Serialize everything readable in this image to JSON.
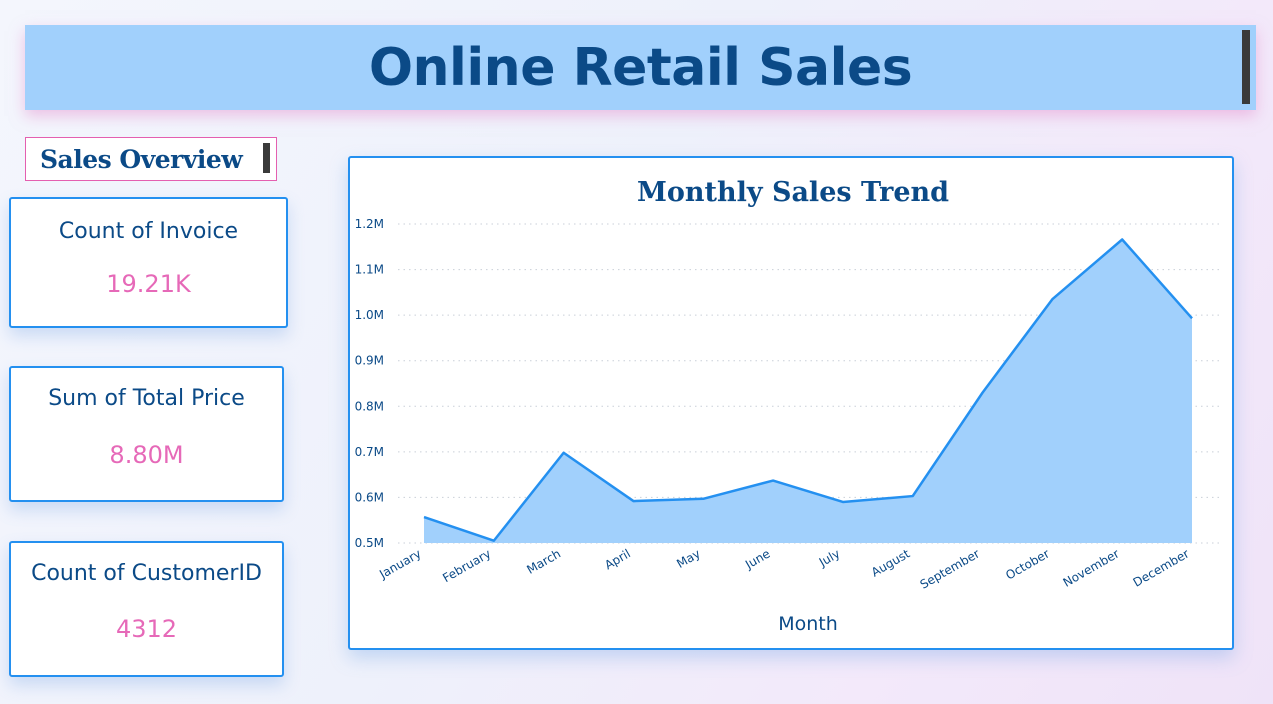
{
  "header": {
    "title": "Online Retail Sales"
  },
  "section": {
    "label": "Sales Overview"
  },
  "kpis": [
    {
      "title": "Count of Invoice",
      "value": "19.21K"
    },
    {
      "title": "Sum of Total Price",
      "value": "8.80M"
    },
    {
      "title": "Count of CustomerID",
      "value": "4312"
    }
  ],
  "colors": {
    "accent": "#2490f0",
    "area_fill": "#a1d0fc",
    "text": "#0b4a87",
    "kpi_value": "#e669b8"
  },
  "chart_data": {
    "type": "area",
    "title": "Monthly Sales Trend",
    "xlabel": "Month",
    "ylabel": "",
    "categories": [
      "January",
      "February",
      "March",
      "April",
      "May",
      "June",
      "July",
      "August",
      "September",
      "October",
      "November",
      "December"
    ],
    "values": [
      0.557,
      0.505,
      0.698,
      0.592,
      0.597,
      0.637,
      0.59,
      0.603,
      0.83,
      1.035,
      1.166,
      0.993
    ],
    "yticks": [
      {
        "value": 0.5,
        "label": "0.5M"
      },
      {
        "value": 0.6,
        "label": "0.6M"
      },
      {
        "value": 0.7,
        "label": "0.7M"
      },
      {
        "value": 0.8,
        "label": "0.8M"
      },
      {
        "value": 0.9,
        "label": "0.9M"
      },
      {
        "value": 1.0,
        "label": "1.0M"
      },
      {
        "value": 1.1,
        "label": "1.1M"
      },
      {
        "value": 1.2,
        "label": "1.2M"
      }
    ],
    "ylim": [
      0.5,
      1.2
    ],
    "grid": true,
    "legend": "none"
  }
}
